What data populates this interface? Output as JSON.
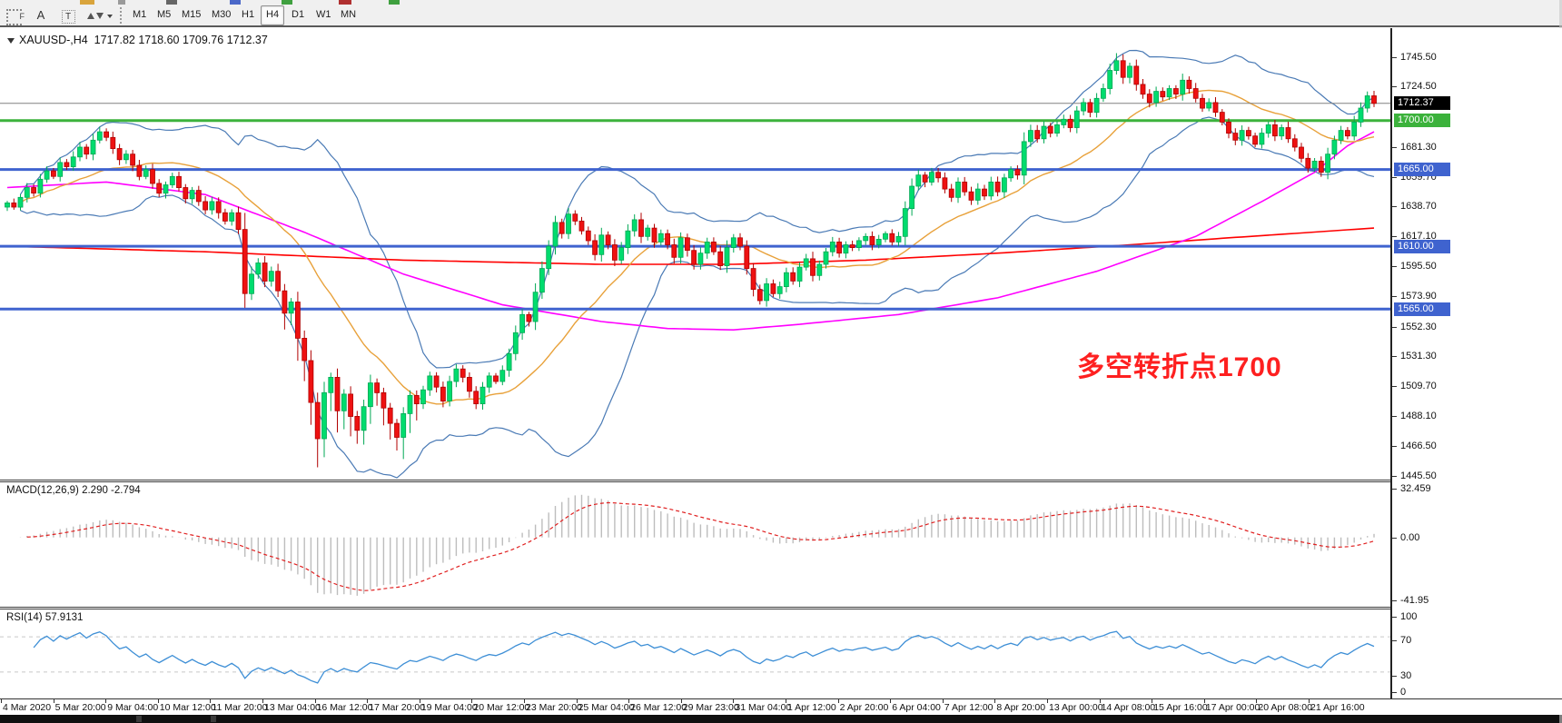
{
  "toolbar": {
    "tools": [
      {
        "id": "fibonacci-tool",
        "glyph": "F"
      },
      {
        "id": "text-tool",
        "glyph": "A"
      },
      {
        "id": "label-tool",
        "glyph": "T"
      },
      {
        "id": "arrows-tool",
        "glyph": ""
      }
    ],
    "timeframes": [
      "M1",
      "M5",
      "M15",
      "M30",
      "H1",
      "H4",
      "D1",
      "W1",
      "MN"
    ],
    "active_timeframe": "H4"
  },
  "chart": {
    "symbol_period": "XAUUSD-,H4",
    "quote_line": "1717.82 1718.60 1709.76 1712.37",
    "last_ohlc": {
      "open": 1717.82,
      "high": 1718.6,
      "low": 1709.76,
      "close": 1712.37
    }
  },
  "annotation": {
    "text": "多空转折点1700",
    "color": "#fe2020"
  },
  "indicators": {
    "macd": {
      "label": "MACD(12,26,9) 2.290 -2.794",
      "fast": 12,
      "slow": 26,
      "signal": 9,
      "main_value": 2.29,
      "signal_value": -2.794
    },
    "rsi": {
      "label": "RSI(14) 57.9131",
      "period": 14,
      "value": 57.9131
    }
  },
  "axis": {
    "price_ticks": [
      1745.5,
      1724.5,
      1681.3,
      1659.7,
      1638.7,
      1617.1,
      1595.5,
      1573.9,
      1552.3,
      1531.3,
      1509.7,
      1488.1,
      1466.5,
      1445.5
    ],
    "price_boxes": [
      {
        "label": "1712.37",
        "price": 1712.37,
        "bg": "#000000",
        "line": "#808080",
        "line_width": 1
      },
      {
        "label": "1700.00",
        "price": 1700.0,
        "bg": "#3cb23c",
        "line": "#3cb23c",
        "line_width": 3
      },
      {
        "label": "1665.00",
        "price": 1665.0,
        "bg": "#3f63cf",
        "line": "#3f63cf",
        "line_width": 3
      },
      {
        "label": "1610.00",
        "price": 1610.0,
        "bg": "#3f63cf",
        "line": "#3f63cf",
        "line_width": 3
      },
      {
        "label": "1565.00",
        "price": 1565.0,
        "bg": "#3f63cf",
        "line": "#3f63cf",
        "line_width": 3
      }
    ],
    "macd_ticks": [
      {
        "label": "32.459",
        "value": 32.459
      },
      {
        "label": "0.00",
        "value": 0
      },
      {
        "label": "-41.95",
        "value": -41.95
      }
    ],
    "rsi_ticks": [
      {
        "label": "100",
        "value": 100
      },
      {
        "label": "70",
        "value": 70
      },
      {
        "label": "30",
        "value": 30
      },
      {
        "label": "0",
        "value": 0
      }
    ]
  },
  "time_axis": {
    "labels": [
      "4 Mar 2020",
      "5 Mar 20:00",
      "9 Mar 04:00",
      "10 Mar 12:00",
      "11 Mar 20:00",
      "13 Mar 04:00",
      "16 Mar 12:00",
      "17 Mar 20:00",
      "19 Mar 04:00",
      "20 Mar 12:00",
      "23 Mar 20:00",
      "25 Mar 04:00",
      "26 Mar 12:00",
      "29 Mar 23:00",
      "31 Mar 04:00",
      "1 Apr 12:00",
      "2 Apr 20:00",
      "6 Apr 04:00",
      "7 Apr 12:00",
      "8 Apr 20:00",
      "13 Apr 00:00",
      "14 Apr 08:00",
      "15 Apr 16:00",
      "17 Apr 00:00",
      "20 Apr 08:00",
      "21 Apr 16:00"
    ]
  },
  "chart_data": [
    {
      "type": "candlestick",
      "symbol": "XAUUSD",
      "period": "H4",
      "title": "XAUUSD-,H4 1717.82 1718.60 1709.76 1712.37",
      "ylim": [
        1442.7,
        1766.3
      ],
      "crash_low": 1451.5,
      "peak_high": 1748.4,
      "current_price": 1712.37,
      "horizontal_levels": [
        1700.0,
        1665.0,
        1610.0,
        1565.0
      ],
      "closes": [
        1641,
        1638,
        1645,
        1652,
        1648,
        1658,
        1664,
        1660,
        1670,
        1667,
        1674,
        1681,
        1676,
        1686,
        1692,
        1688,
        1680,
        1672,
        1676,
        1668,
        1660,
        1665,
        1655,
        1648,
        1654,
        1660,
        1652,
        1644,
        1650,
        1642,
        1636,
        1642,
        1634,
        1628,
        1634,
        1622,
        1576,
        1590,
        1598,
        1585,
        1592,
        1578,
        1562,
        1570,
        1544,
        1528,
        1498,
        1472,
        1505,
        1516,
        1492,
        1504,
        1488,
        1478,
        1495,
        1512,
        1505,
        1494,
        1483,
        1473,
        1490,
        1503,
        1497,
        1507,
        1517,
        1509,
        1499,
        1513,
        1522,
        1516,
        1506,
        1497,
        1509,
        1517,
        1513,
        1521,
        1533,
        1548,
        1561,
        1556,
        1577,
        1594,
        1610,
        1627,
        1619,
        1633,
        1628,
        1621,
        1614,
        1604,
        1618,
        1611,
        1600,
        1609,
        1621,
        1629,
        1617,
        1623,
        1613,
        1619,
        1611,
        1602,
        1616,
        1607,
        1597,
        1605,
        1613,
        1606,
        1596,
        1609,
        1616,
        1610,
        1594,
        1579,
        1571,
        1583,
        1576,
        1581,
        1591,
        1585,
        1595,
        1601,
        1589,
        1597,
        1606,
        1613,
        1605,
        1611,
        1609,
        1614,
        1617,
        1611,
        1615,
        1619,
        1613,
        1617,
        1637,
        1653,
        1661,
        1656,
        1663,
        1659,
        1651,
        1645,
        1656,
        1649,
        1643,
        1651,
        1646,
        1656,
        1649,
        1659,
        1665,
        1661,
        1685,
        1693,
        1687,
        1696,
        1691,
        1697,
        1701,
        1695,
        1707,
        1713,
        1706,
        1716,
        1723,
        1736,
        1743,
        1731,
        1739,
        1726,
        1719,
        1713,
        1721,
        1717,
        1723,
        1719,
        1729,
        1723,
        1716,
        1709,
        1713,
        1706,
        1699,
        1691,
        1686,
        1693,
        1689,
        1683,
        1691,
        1697,
        1689,
        1695,
        1687,
        1681,
        1673,
        1666,
        1671,
        1663,
        1676,
        1686,
        1693,
        1689,
        1699,
        1709,
        1717.8,
        1712.37
      ],
      "overlays": {
        "bollinger": {
          "period": 20,
          "deviation": 2,
          "band_color": "#4a7ab5",
          "middle_color": "#e8a13a"
        },
        "ma_mid": {
          "color": "#ff00ff",
          "points": [
            [
              0,
              1652
            ],
            [
              15,
              1656
            ],
            [
              30,
              1647
            ],
            [
              45,
              1620
            ],
            [
              60,
              1590
            ],
            [
              75,
              1568
            ],
            [
              90,
              1556
            ],
            [
              100,
              1551
            ],
            [
              110,
              1550
            ],
            [
              120,
              1554
            ],
            [
              135,
              1561
            ],
            [
              150,
              1573
            ],
            [
              165,
              1592
            ],
            [
              180,
              1617
            ],
            [
              190,
              1642
            ],
            [
              198,
              1663
            ],
            [
              203,
              1682
            ],
            [
              207,
              1692
            ]
          ]
        },
        "ma_slow": {
          "color": "#ff0000",
          "points": [
            [
              0,
              1610
            ],
            [
              30,
              1606
            ],
            [
              60,
              1600
            ],
            [
              90,
              1597
            ],
            [
              110,
              1597
            ],
            [
              130,
              1600
            ],
            [
              150,
              1605
            ],
            [
              170,
              1611
            ],
            [
              185,
              1616
            ],
            [
              207,
              1623
            ]
          ]
        }
      },
      "colors": {
        "up_fill": "#00dc6e",
        "up_stroke": "#00a854",
        "down_fill": "#ee1111",
        "down_stroke": "#b00000"
      }
    },
    {
      "type": "bar",
      "name": "MACD",
      "params": "12,26,9",
      "main_value": 2.29,
      "signal_value": -2.794,
      "ylim": [
        -46.2,
        36.1
      ],
      "ticks": [
        32.459,
        0.0,
        -41.95
      ],
      "histogram_color": "#bdbdbd",
      "signal_color": "#e02020"
    },
    {
      "type": "line",
      "name": "RSI",
      "period": 14,
      "current_value": 57.9131,
      "ylim": [
        0,
        100
      ],
      "levels": [
        70,
        30
      ],
      "line_color": "#3e8fd6"
    }
  ]
}
